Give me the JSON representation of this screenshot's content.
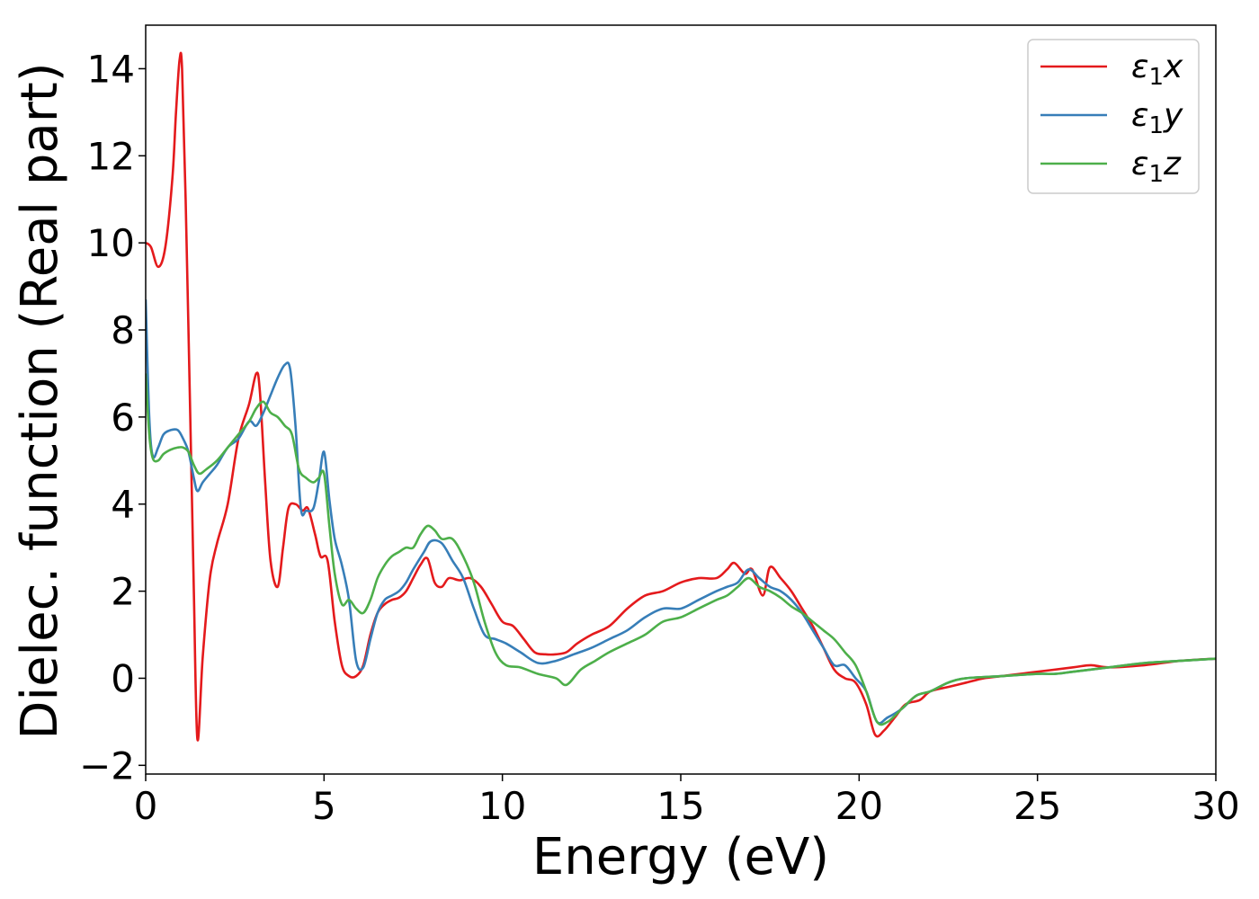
{
  "chart_data": {
    "type": "line",
    "title": "",
    "xlabel": "Energy (eV)",
    "ylabel": "Dielec. function (Real part)",
    "xlim": [
      0,
      30
    ],
    "ylim": [
      -2.2,
      15
    ],
    "xticks": [
      0,
      5,
      10,
      15,
      20,
      25,
      30
    ],
    "yticks": [
      -2,
      0,
      2,
      4,
      6,
      8,
      10,
      12,
      14
    ],
    "xtick_labels": [
      "0",
      "5",
      "10",
      "15",
      "20",
      "25",
      "30"
    ],
    "ytick_labels": [
      "−2",
      "0",
      "2",
      "4",
      "6",
      "8",
      "10",
      "12",
      "14"
    ],
    "grid": false,
    "legend_position": "top-right",
    "series": [
      {
        "name": "ε₁x",
        "legend_main": "ε",
        "legend_sub": "1",
        "legend_axis": "x",
        "color": "#e41a1c",
        "x": [
          0,
          0.15,
          0.35,
          0.55,
          0.75,
          0.85,
          0.95,
          1.02,
          1.12,
          1.25,
          1.35,
          1.45,
          1.6,
          1.8,
          2.0,
          2.3,
          2.6,
          2.9,
          3.1,
          3.2,
          3.35,
          3.5,
          3.7,
          3.85,
          4.0,
          4.2,
          4.4,
          4.55,
          4.75,
          4.9,
          5.1,
          5.3,
          5.5,
          5.7,
          5.9,
          6.1,
          6.3,
          6.5,
          6.7,
          6.9,
          7.1,
          7.3,
          7.5,
          7.7,
          7.9,
          8.1,
          8.3,
          8.5,
          8.8,
          9.1,
          9.4,
          9.7,
          10.0,
          10.3,
          10.6,
          10.9,
          11.2,
          11.5,
          11.8,
          12.1,
          12.5,
          13.0,
          13.5,
          14.0,
          14.5,
          15.0,
          15.5,
          16.0,
          16.3,
          16.5,
          16.8,
          17.0,
          17.3,
          17.5,
          17.8,
          18.1,
          18.4,
          18.7,
          19.0,
          19.3,
          19.6,
          19.9,
          20.2,
          20.45,
          20.7,
          21.0,
          21.3,
          21.7,
          22.0,
          22.5,
          23.0,
          23.5,
          24.0,
          25.0,
          26.0,
          26.5,
          27.0,
          28.0,
          29.0,
          30.0
        ],
        "values": [
          10.0,
          9.9,
          9.45,
          9.9,
          11.5,
          13.0,
          14.2,
          14.0,
          11.0,
          6.0,
          2.0,
          -1.4,
          0.5,
          2.3,
          3.1,
          4.0,
          5.5,
          6.3,
          7.0,
          6.6,
          4.5,
          2.7,
          2.1,
          3.0,
          3.9,
          4.0,
          3.85,
          3.9,
          3.3,
          2.8,
          2.7,
          1.3,
          0.3,
          0.05,
          0.05,
          0.3,
          1.0,
          1.5,
          1.7,
          1.8,
          1.85,
          2.0,
          2.3,
          2.6,
          2.75,
          2.2,
          2.1,
          2.3,
          2.25,
          2.3,
          2.1,
          1.7,
          1.3,
          1.2,
          0.9,
          0.6,
          0.55,
          0.55,
          0.6,
          0.8,
          1.0,
          1.2,
          1.6,
          1.9,
          2.0,
          2.2,
          2.3,
          2.3,
          2.5,
          2.65,
          2.4,
          2.5,
          1.9,
          2.55,
          2.3,
          2.0,
          1.6,
          1.2,
          0.7,
          0.2,
          0.0,
          -0.1,
          -0.6,
          -1.3,
          -1.2,
          -0.9,
          -0.6,
          -0.5,
          -0.3,
          -0.2,
          -0.1,
          0.0,
          0.05,
          0.15,
          0.25,
          0.3,
          0.25,
          0.3,
          0.4,
          0.45
        ]
      },
      {
        "name": "ε₁y",
        "legend_main": "ε",
        "legend_sub": "1",
        "legend_axis": "y",
        "color": "#377eb8",
        "x": [
          0,
          0.1,
          0.2,
          0.35,
          0.5,
          0.7,
          0.9,
          1.05,
          1.2,
          1.35,
          1.45,
          1.6,
          1.8,
          2.0,
          2.3,
          2.6,
          2.9,
          3.1,
          3.3,
          3.5,
          3.7,
          3.9,
          4.05,
          4.2,
          4.35,
          4.5,
          4.7,
          4.85,
          5.0,
          5.15,
          5.3,
          5.5,
          5.7,
          5.9,
          6.1,
          6.3,
          6.5,
          6.7,
          6.9,
          7.1,
          7.3,
          7.5,
          7.8,
          8.0,
          8.3,
          8.6,
          8.9,
          9.2,
          9.5,
          9.8,
          10.1,
          10.5,
          11.0,
          11.5,
          12.0,
          12.5,
          13.0,
          13.5,
          14.0,
          14.5,
          15.0,
          15.5,
          16.0,
          16.3,
          16.6,
          16.9,
          17.2,
          17.5,
          17.8,
          18.1,
          18.4,
          18.7,
          19.0,
          19.3,
          19.6,
          19.9,
          20.2,
          20.5,
          20.8,
          21.2,
          21.6,
          22.0,
          22.5,
          23.0,
          24.0,
          25.0,
          25.5,
          26.0,
          27.0,
          28.0,
          29.0,
          30.0
        ],
        "values": [
          8.7,
          6.0,
          5.1,
          5.3,
          5.6,
          5.7,
          5.7,
          5.5,
          5.2,
          4.6,
          4.3,
          4.5,
          4.7,
          4.9,
          5.3,
          5.5,
          5.9,
          5.8,
          6.1,
          6.5,
          6.9,
          7.2,
          7.1,
          5.8,
          3.9,
          3.85,
          3.9,
          4.5,
          5.2,
          4.1,
          3.2,
          2.6,
          1.8,
          0.4,
          0.25,
          0.9,
          1.5,
          1.8,
          1.9,
          2.0,
          2.2,
          2.5,
          2.9,
          3.15,
          3.1,
          2.7,
          2.3,
          1.6,
          1.0,
          0.9,
          0.8,
          0.6,
          0.35,
          0.4,
          0.55,
          0.7,
          0.9,
          1.1,
          1.4,
          1.6,
          1.6,
          1.8,
          2.0,
          2.1,
          2.2,
          2.5,
          2.3,
          2.1,
          2.0,
          1.8,
          1.5,
          1.1,
          0.7,
          0.3,
          0.3,
          0.0,
          -0.3,
          -1.0,
          -0.9,
          -0.7,
          -0.4,
          -0.3,
          -0.1,
          0.0,
          0.05,
          0.1,
          0.1,
          0.15,
          0.25,
          0.35,
          0.4,
          0.45
        ]
      },
      {
        "name": "ε₁z",
        "legend_main": "ε",
        "legend_sub": "1",
        "legend_axis": "z",
        "color": "#4daf4a",
        "x": [
          0,
          0.1,
          0.2,
          0.35,
          0.5,
          0.7,
          0.9,
          1.05,
          1.2,
          1.35,
          1.5,
          1.7,
          2.0,
          2.3,
          2.6,
          2.9,
          3.1,
          3.3,
          3.5,
          3.7,
          3.9,
          4.1,
          4.3,
          4.5,
          4.7,
          4.85,
          5.0,
          5.15,
          5.3,
          5.5,
          5.7,
          5.9,
          6.1,
          6.3,
          6.5,
          6.7,
          6.9,
          7.1,
          7.3,
          7.5,
          7.7,
          7.9,
          8.1,
          8.3,
          8.6,
          8.9,
          9.2,
          9.5,
          9.8,
          10.1,
          10.5,
          11.0,
          11.5,
          11.8,
          12.2,
          12.6,
          13.0,
          13.5,
          14.0,
          14.5,
          15.0,
          15.5,
          16.0,
          16.3,
          16.6,
          16.9,
          17.2,
          17.5,
          17.8,
          18.1,
          18.4,
          18.7,
          19.0,
          19.3,
          19.6,
          19.9,
          20.2,
          20.5,
          20.8,
          21.2,
          21.6,
          22.0,
          22.5,
          23.0,
          24.0,
          25.0,
          25.5,
          26.0,
          27.0,
          28.0,
          29.0,
          30.0
        ],
        "values": [
          7.0,
          5.6,
          5.05,
          5.0,
          5.15,
          5.25,
          5.3,
          5.3,
          5.2,
          4.9,
          4.7,
          4.8,
          5.0,
          5.3,
          5.6,
          5.9,
          6.2,
          6.35,
          6.1,
          6.0,
          5.8,
          5.6,
          4.8,
          4.6,
          4.5,
          4.6,
          4.7,
          3.5,
          2.4,
          1.7,
          1.8,
          1.6,
          1.5,
          1.8,
          2.3,
          2.6,
          2.8,
          2.9,
          3.0,
          3.0,
          3.3,
          3.5,
          3.4,
          3.2,
          3.2,
          2.8,
          2.2,
          1.3,
          0.6,
          0.3,
          0.25,
          0.1,
          0.0,
          -0.15,
          0.2,
          0.4,
          0.6,
          0.8,
          1.0,
          1.3,
          1.4,
          1.6,
          1.8,
          1.9,
          2.1,
          2.3,
          2.1,
          2.0,
          1.85,
          1.65,
          1.5,
          1.3,
          1.1,
          0.9,
          0.6,
          0.3,
          -0.3,
          -1.0,
          -1.0,
          -0.7,
          -0.4,
          -0.3,
          -0.1,
          0.0,
          0.05,
          0.1,
          0.1,
          0.15,
          0.25,
          0.35,
          0.4,
          0.45
        ]
      }
    ]
  }
}
